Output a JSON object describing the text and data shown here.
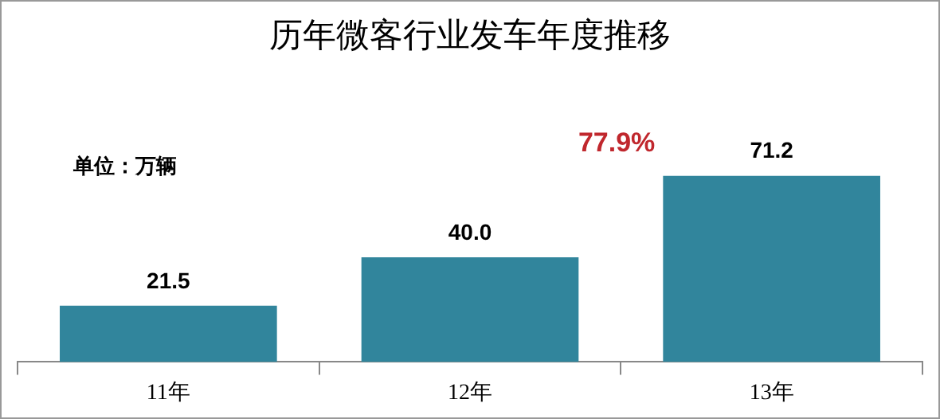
{
  "chart_data": {
    "type": "bar",
    "title": "历年微客行业发车年度推移",
    "categories": [
      "11年",
      "12年",
      "13年"
    ],
    "values": [
      21.5,
      40.0,
      71.2
    ],
    "value_labels": [
      "21.5",
      "40.0",
      "71.2"
    ],
    "color": "#31859c",
    "annotations": [
      "单位：万辆",
      "77.9%"
    ]
  }
}
